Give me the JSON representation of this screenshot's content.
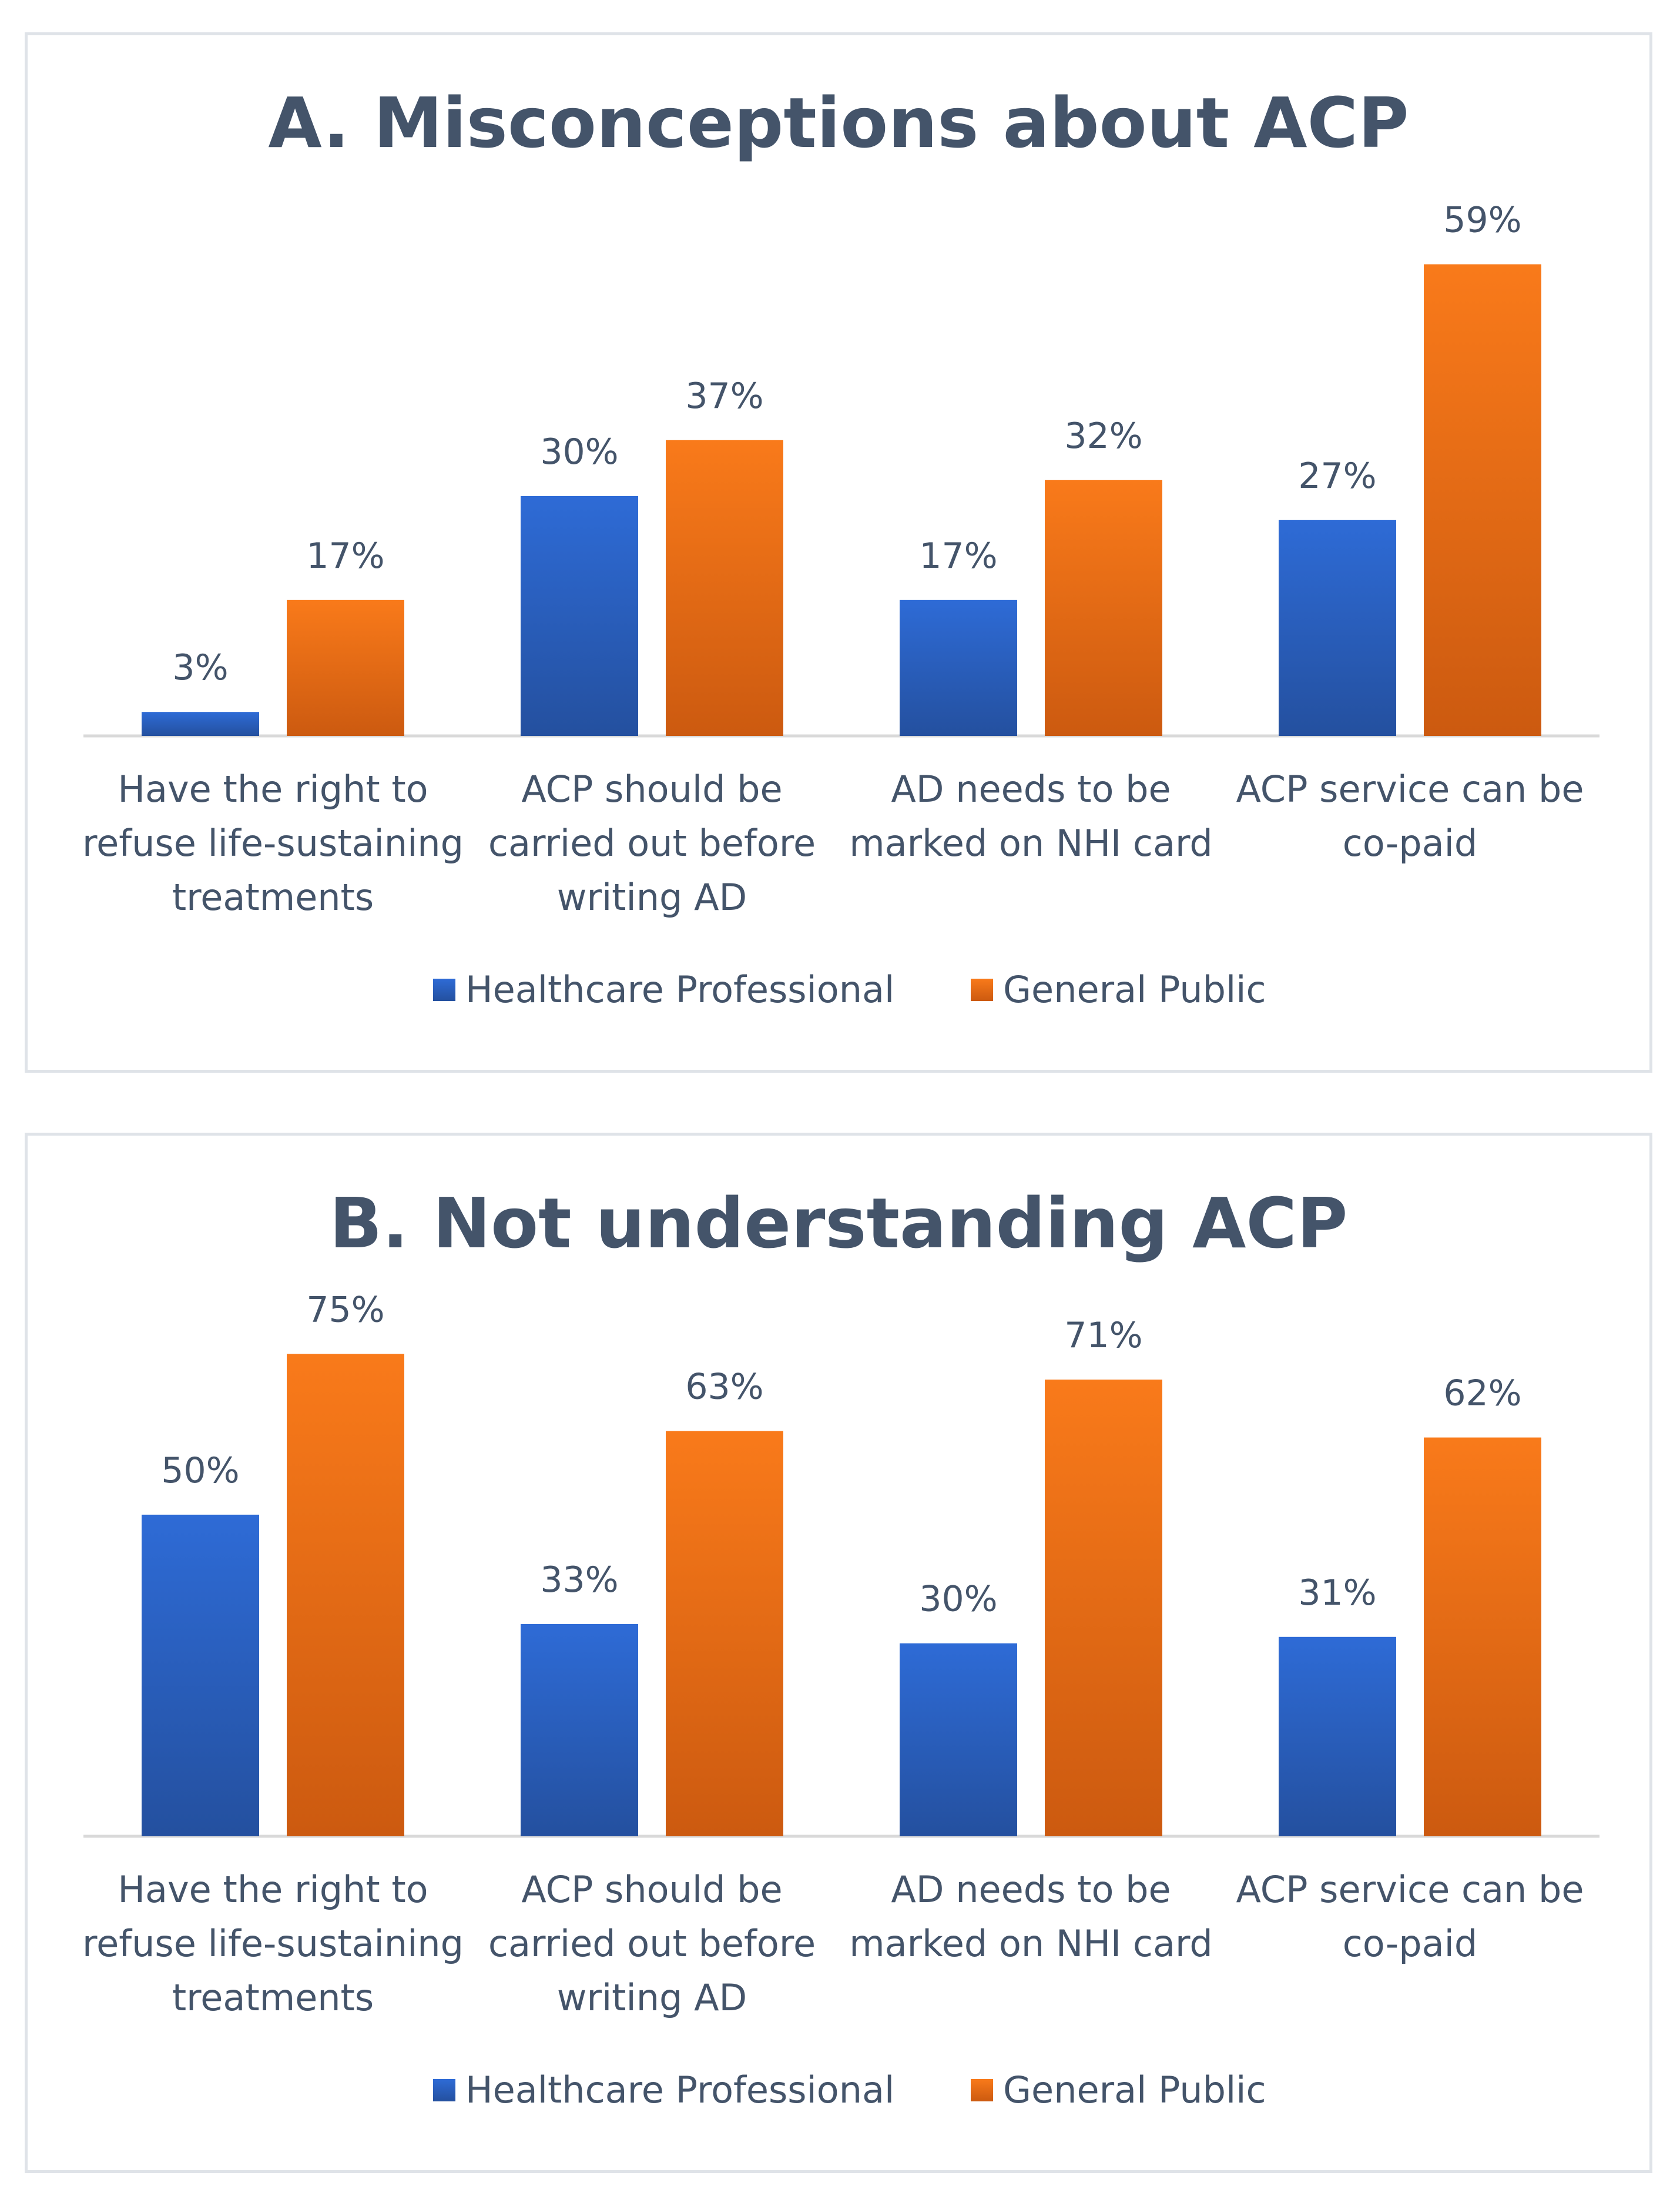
{
  "colors": {
    "healthcare": "#2e6bd6",
    "healthcare_dark": "#24509f",
    "public": "#f97a1a",
    "public_dark": "#cc5a10",
    "text": "#44546a",
    "axis": "#d9d9d9"
  },
  "chart_data": [
    {
      "type": "bar",
      "title": "A. Misconceptions about ACP",
      "categories": [
        [
          "Have the right to",
          "refuse life-sustaining",
          "treatments"
        ],
        [
          "ACP should be",
          "carried out before",
          "writing AD"
        ],
        [
          "AD needs to be",
          "marked on NHI card"
        ],
        [
          "ACP service can be",
          "co-paid"
        ]
      ],
      "series": [
        {
          "name": "Healthcare Professional",
          "values": [
            3,
            30,
            17,
            27
          ],
          "labels": [
            "3%",
            "30%",
            "17%",
            "27%"
          ]
        },
        {
          "name": "General Public",
          "values": [
            17,
            37,
            32,
            59
          ],
          "labels": [
            "17%",
            "37%",
            "32%",
            "59%"
          ]
        }
      ],
      "ylim": [
        0,
        70
      ],
      "legend": "bottom",
      "grid": false
    },
    {
      "type": "bar",
      "title": "B. Not understanding ACP",
      "categories": [
        [
          "Have the right to",
          "refuse life-sustaining",
          "treatments"
        ],
        [
          "ACP should be",
          "carried out before",
          "writing AD"
        ],
        [
          "AD needs to be",
          "marked on NHI card"
        ],
        [
          "ACP service can be",
          "co-paid"
        ]
      ],
      "series": [
        {
          "name": "Healthcare Professional",
          "values": [
            50,
            33,
            30,
            31
          ],
          "labels": [
            "50%",
            "33%",
            "30%",
            "31%"
          ]
        },
        {
          "name": "General Public",
          "values": [
            75,
            63,
            71,
            62
          ],
          "labels": [
            "75%",
            "63%",
            "71%",
            "62%"
          ]
        }
      ],
      "ylim": [
        0,
        87
      ],
      "legend": "bottom",
      "grid": false
    }
  ]
}
